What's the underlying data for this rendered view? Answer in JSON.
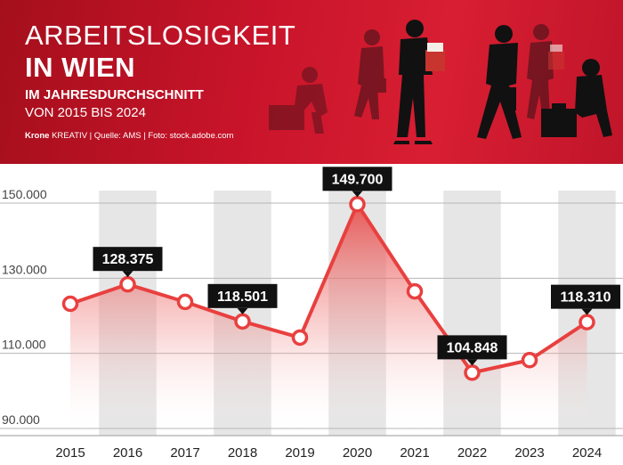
{
  "header": {
    "title_line1": "ARBEITSLOSIGKEIT",
    "title_line2": "IN WIEN",
    "subtitle_line1": "IM JAHRESDURCHSCHNITT",
    "subtitle_line2": "VON 2015 BIS 2024",
    "credit_brand": "Krone",
    "credit_rest": "KREATIV | Quelle: AMS | Foto: stock.adobe.com"
  },
  "colors": {
    "header_red": "#c8142a",
    "line": "#e8403f",
    "band": "#e6e6e6",
    "label_bg": "#111111",
    "label_text": "#ffffff"
  },
  "chart_data": {
    "type": "area",
    "title": "ARBEITSLOSIGKEIT IN WIEN",
    "subtitle": "IM JAHRESDURCHSCHNITT VON 2015 BIS 2024",
    "categories": [
      "2015",
      "2016",
      "2017",
      "2018",
      "2019",
      "2020",
      "2021",
      "2022",
      "2023",
      "2024"
    ],
    "values": [
      123200,
      128375,
      123700,
      118501,
      114200,
      149700,
      126500,
      104848,
      108200,
      118310
    ],
    "labeled": [
      false,
      true,
      false,
      true,
      false,
      true,
      false,
      true,
      false,
      true
    ],
    "value_labels": [
      "",
      "128.375",
      "",
      "118.501",
      "",
      "149.700",
      "",
      "104.848",
      "",
      "118.310"
    ],
    "yticks": [
      90000,
      110000,
      130000,
      150000
    ],
    "ytick_labels": [
      "90.000",
      "110.000",
      "130.000",
      "150.000"
    ],
    "ylim": [
      88000,
      152000
    ],
    "xlabel": "",
    "ylabel": "",
    "grid": true,
    "alternating_bands": true
  }
}
